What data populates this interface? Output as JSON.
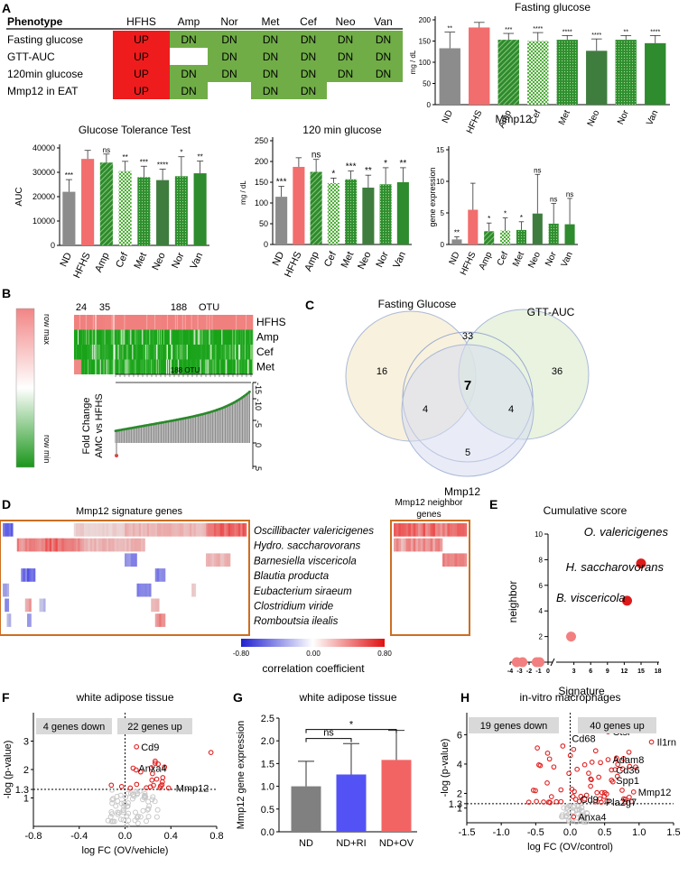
{
  "panels": {
    "A": "A",
    "B": "B",
    "C": "C",
    "D": "D",
    "E": "E",
    "F": "F",
    "G": "G",
    "H": "H"
  },
  "phenotype_table": {
    "header": [
      "Phenotype",
      "HFHS",
      "Amp",
      "Nor",
      "Met",
      "Cef",
      "Neo",
      "Van"
    ],
    "rows": [
      {
        "label": "Fasting glucose",
        "cells": [
          "UP",
          "DN",
          "DN",
          "DN",
          "DN",
          "DN",
          "DN"
        ]
      },
      {
        "label": "GTT-AUC",
        "cells": [
          "UP",
          "",
          "DN",
          "DN",
          "DN",
          "DN",
          "DN"
        ]
      },
      {
        "label": "120min glucose",
        "cells": [
          "UP",
          "DN",
          "DN",
          "DN",
          "DN",
          "DN",
          "DN"
        ]
      },
      {
        "label": "Mmp12 in EAT",
        "cells": [
          "UP",
          "DN",
          "",
          "DN",
          "DN",
          "",
          ""
        ]
      }
    ],
    "colors": {
      "UP": "#ee1c1c",
      "DN": "#70ad47"
    }
  },
  "chart_data": [
    {
      "id": "fasting",
      "type": "bar",
      "title": "Fasting glucose",
      "ylabel": "mg / dL",
      "ylim": [
        0,
        200
      ],
      "yticks": [
        0,
        50,
        100,
        150,
        200
      ],
      "categories": [
        "ND",
        "HFHS",
        "Amp",
        "Cef",
        "Met",
        "Neo",
        "Nor",
        "Van"
      ],
      "values": [
        133,
        182,
        153,
        150,
        153,
        127,
        153,
        145
      ],
      "errors": [
        38,
        12,
        15,
        20,
        10,
        28,
        10,
        18
      ],
      "sig": [
        "**",
        "",
        "***",
        "****",
        "****",
        "****",
        "**",
        "****"
      ],
      "fills": [
        "#8c8c8c",
        "#f26d6d",
        "#2e8b2e",
        "#6fc24f",
        "#2e8b2e",
        "#3f7d3f",
        "#6fc24f",
        "#2e8b2e"
      ],
      "patterns": [
        "solid",
        "solid",
        "stripe",
        "check",
        "dots",
        "solid",
        "dots",
        "solid"
      ]
    },
    {
      "id": "gtt",
      "type": "bar",
      "title": "Glucose Tolerance Test",
      "ylabel": "AUC",
      "ylim": [
        0,
        40000
      ],
      "yticks": [
        0,
        10000,
        20000,
        30000,
        40000
      ],
      "categories": [
        "ND",
        "HFHS",
        "Amp",
        "Cef",
        "Met",
        "Neo",
        "Nor",
        "Van"
      ],
      "values": [
        22000,
        35500,
        34000,
        30500,
        28000,
        26800,
        28400,
        29600
      ],
      "errors": [
        5000,
        3500,
        3500,
        4000,
        4500,
        4500,
        8000,
        5000
      ],
      "sig": [
        "***",
        "",
        "ns",
        "**",
        "***",
        "****",
        "*",
        "**"
      ],
      "fills": [
        "#8c8c8c",
        "#f26d6d",
        "#2e8b2e",
        "#6fc24f",
        "#2e8b2e",
        "#3f7d3f",
        "#6fc24f",
        "#2e8b2e"
      ],
      "patterns": [
        "solid",
        "solid",
        "stripe",
        "check",
        "dots",
        "solid",
        "dots",
        "solid"
      ]
    },
    {
      "id": "g120",
      "type": "bar",
      "title": "120 min glucose",
      "ylabel": "mg / dL",
      "ylim": [
        0,
        250
      ],
      "yticks": [
        0,
        50,
        100,
        150,
        200,
        250
      ],
      "categories": [
        "ND",
        "HFHS",
        "Amp",
        "Cef",
        "Met",
        "Neo",
        "Nor",
        "Van"
      ],
      "values": [
        115,
        187,
        175,
        148,
        157,
        137,
        145,
        150
      ],
      "errors": [
        25,
        22,
        30,
        12,
        20,
        30,
        40,
        35
      ],
      "sig": [
        "***",
        "",
        "ns",
        "*",
        "***",
        "**",
        "*",
        "**"
      ],
      "fills": [
        "#8c8c8c",
        "#f26d6d",
        "#2e8b2e",
        "#6fc24f",
        "#2e8b2e",
        "#3f7d3f",
        "#6fc24f",
        "#2e8b2e"
      ],
      "patterns": [
        "solid",
        "solid",
        "stripe",
        "check",
        "dots",
        "solid",
        "dots",
        "solid"
      ]
    },
    {
      "id": "mmp12",
      "type": "bar",
      "title": "Mmp12",
      "ylabel": "gene expression",
      "ylim": [
        0,
        15
      ],
      "yticks": [
        0,
        5,
        10,
        15
      ],
      "categories": [
        "ND",
        "HFHS",
        "Amp",
        "Cef",
        "Met",
        "Neo",
        "Nor",
        "Van"
      ],
      "values": [
        0.8,
        5.5,
        2.1,
        2.2,
        2.3,
        4.9,
        3.3,
        3.2
      ],
      "errors": [
        0.4,
        4.2,
        1.3,
        2.0,
        1.3,
        6.2,
        3.2,
        4.1
      ],
      "sig": [
        "**",
        "",
        "*",
        "*",
        "*",
        "ns",
        "ns",
        "ns"
      ],
      "fills": [
        "#8c8c8c",
        "#f26d6d",
        "#2e8b2e",
        "#6fc24f",
        "#2e8b2e",
        "#3f7d3f",
        "#6fc24f",
        "#2e8b2e"
      ],
      "patterns": [
        "solid",
        "solid",
        "stripe",
        "check",
        "dots",
        "solid",
        "dots",
        "solid"
      ]
    },
    {
      "id": "venn",
      "type": "venn",
      "sets": [
        "Fasting Glucose",
        "GTT-AUC",
        "Mmp12"
      ],
      "counts": {
        "fg_only": 16,
        "gtt_only": 36,
        "mmp_only": 5,
        "fg_gtt": 33,
        "fg_mmp": 4,
        "gtt_mmp": 4,
        "all": 7
      }
    },
    {
      "id": "cumulative",
      "type": "scatter",
      "title": "Cumulative score",
      "xlabel": "Signature",
      "ylabel": "neighbor",
      "xticks": [
        -4,
        -3,
        -2,
        -1,
        0,
        3,
        6,
        9,
        12,
        15,
        18
      ],
      "yticks": [
        2,
        4,
        6,
        8,
        10
      ],
      "points": [
        {
          "label": "O. valericigenes",
          "x": 15,
          "y": 7.7
        },
        {
          "label": "H. saccharovorans",
          "x": 12.5,
          "y": 4.8
        },
        {
          "label": "B. viscericola",
          "x": 2.5,
          "y": 2
        },
        {
          "label": "",
          "x": -3.3,
          "y": 0
        },
        {
          "label": "",
          "x": -2.7,
          "y": 0
        },
        {
          "label": "",
          "x": -1.2,
          "y": 0
        },
        {
          "label": "",
          "x": -0.9,
          "y": 0
        }
      ]
    },
    {
      "id": "volcano_wat",
      "type": "scatter",
      "title": "white adipose tissue",
      "xlabel": "log FC (OV/vehicle)",
      "ylabel": "-log (p-value)",
      "xlim": [
        -0.8,
        0.8
      ],
      "xticks": [
        -0.8,
        -0.4,
        0.0,
        0.4,
        0.8
      ],
      "ylim": [
        0,
        4
      ],
      "yticks": [
        1,
        1.3,
        2,
        3
      ],
      "threshold": 1.3,
      "down_label": "4 genes down",
      "up_label": "22 genes up",
      "labeled": [
        {
          "label": "Cd9",
          "x": 0.1,
          "y": 2.8
        },
        {
          "label": "Anxa4",
          "x": 0.07,
          "y": 2.05
        },
        {
          "label": "Mmp12",
          "x": 0.38,
          "y": 1.35
        }
      ]
    },
    {
      "id": "mmp12_expr",
      "type": "bar",
      "title": "white adipose tissue",
      "ylabel": "Mmp12 gene expression",
      "ylim": [
        0,
        2.5
      ],
      "yticks": [
        0.0,
        0.5,
        1.0,
        1.5,
        2.0,
        2.5
      ],
      "categories": [
        "ND",
        "ND+RI",
        "ND+OV"
      ],
      "values": [
        1.0,
        1.26,
        1.58
      ],
      "errors": [
        0.55,
        0.68,
        0.65
      ],
      "fills": [
        "#808080",
        "#5353f5",
        "#f26464"
      ],
      "comparisons": [
        {
          "a": 0,
          "b": 1,
          "label": "ns"
        },
        {
          "a": 0,
          "b": 2,
          "label": "*"
        }
      ]
    },
    {
      "id": "volcano_mac",
      "type": "scatter",
      "title": "in-vitro macrophages",
      "xlabel": "log FC (OV/control)",
      "ylabel": "-log (p-value)",
      "xlim": [
        -1.5,
        1.5
      ],
      "xticks": [
        -1.5,
        -1.0,
        -0.5,
        0.0,
        0.5,
        1.0,
        1.5
      ],
      "ylim": [
        0,
        7.5
      ],
      "yticks": [
        1,
        1.3,
        2,
        4,
        6
      ],
      "threshold": 1.3,
      "down_label": "19 genes down",
      "up_label": "40 genes up",
      "labeled": [
        {
          "label": "Ctsl",
          "x": 0.55,
          "y": 6.2
        },
        {
          "label": "Il1rn",
          "x": 1.18,
          "y": 5.5
        },
        {
          "label": "Cd68",
          "x": 0.05,
          "y": 5.0
        },
        {
          "label": "Adam8",
          "x": 0.55,
          "y": 4.3
        },
        {
          "label": "Cd36",
          "x": 0.6,
          "y": 3.6
        },
        {
          "label": "Spp1",
          "x": 0.6,
          "y": 2.9
        },
        {
          "label": "Mmp12",
          "x": 0.92,
          "y": 2.1
        },
        {
          "label": "Cd9",
          "x": 0.08,
          "y": 1.6
        },
        {
          "label": "Pla2g7",
          "x": 0.45,
          "y": 1.4
        },
        {
          "label": "Anxa4",
          "x": 0.05,
          "y": 0.4
        }
      ]
    }
  ],
  "heatmap_b": {
    "groups": [
      "24",
      "35",
      "188"
    ],
    "otu_label": "OTU",
    "rows": [
      "HFHS",
      "Amp",
      "Cef",
      "Met"
    ],
    "scale_max": "row max",
    "scale_min": "row min",
    "axis_label": "188 OTU",
    "fc_label": "Fold Change",
    "fc_label2": "AMC vs HFHS",
    "fc_ticks": [
      "-15",
      "-10",
      "-5",
      "0",
      "5"
    ]
  },
  "heatmap_d": {
    "left_title": "Mmp12 signature genes",
    "right_title": "Mmp12 neighbor",
    "right_title2": "genes",
    "species": [
      "Oscillibacter valericigenes",
      "Hydro. saccharovorans",
      "Barnesiella viscericola",
      "Blautia producta",
      "Eubacterium siraeum",
      "Clostridium viride",
      "Romboutsia ilealis"
    ],
    "colorbar_ticks": [
      "-0.80",
      "0.00",
      "0.80"
    ],
    "colorbar_label": "correlation coefficient"
  }
}
